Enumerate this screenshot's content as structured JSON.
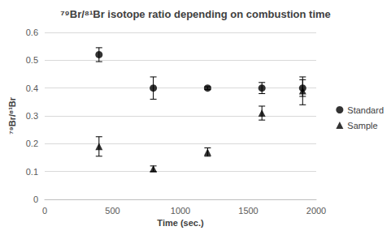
{
  "chart_data": {
    "type": "scatter",
    "title": "⁷⁹Br/⁸¹Br isotope ratio depending on combustion time",
    "x_label": "Time (sec.)",
    "y_label": "⁷⁹Br/⁸¹Br",
    "x": [
      400,
      800,
      1200,
      1600,
      1900
    ],
    "series": [
      {
        "name": "Standard",
        "color": "#000000",
        "marker": "circle",
        "values": [
          0.52,
          0.4,
          0.4,
          0.4,
          0.4
        ],
        "errors": [
          0.025,
          0.04,
          0.005,
          0.02,
          0.03
        ]
      },
      {
        "name": "Sample",
        "color": "#000000",
        "marker": "triangle",
        "values": [
          0.19,
          0.11,
          0.17,
          0.31,
          0.39
        ],
        "errors": [
          0.035,
          0.01,
          0.015,
          0.025,
          0.05
        ]
      }
    ],
    "xlim": [
      0,
      2000
    ],
    "xticks": [
      0,
      500,
      1000,
      1500,
      2000
    ],
    "ylim": [
      0,
      0.6
    ],
    "yticks": [
      0,
      0.1,
      0.2,
      0.3,
      0.4,
      0.5,
      0.6
    ],
    "grid": true,
    "legend": "right"
  }
}
